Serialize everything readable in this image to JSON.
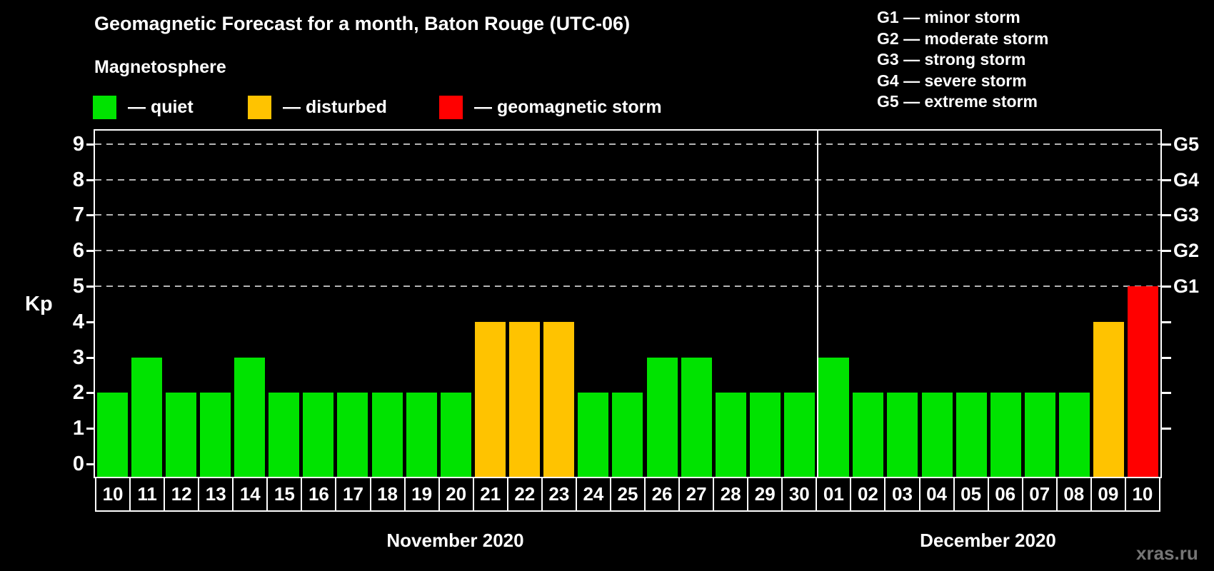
{
  "title": "Geomagnetic Forecast for a month, Baton Rouge (UTC-06)",
  "subtitle": "Magnetosphere",
  "legend": {
    "items": [
      {
        "name": "quiet",
        "label": "— quiet",
        "color": "#00e300"
      },
      {
        "name": "disturbed",
        "label": "— disturbed",
        "color": "#ffc300"
      },
      {
        "name": "storm",
        "label": "— geomagnetic storm",
        "color": "#ff0000"
      }
    ]
  },
  "storm_scale": [
    "G1 — minor storm",
    "G2 — moderate storm",
    "G3 — strong storm",
    "G4 — severe storm",
    "G5 — extreme storm"
  ],
  "watermark": "xras.ru",
  "chart_data": {
    "type": "bar",
    "title": "Geomagnetic Forecast for a month, Baton Rouge (UTC-06)",
    "ylabel": "Kp",
    "ylim": [
      0,
      9.5
    ],
    "yticks": [
      0,
      1,
      2,
      3,
      4,
      5,
      6,
      7,
      8,
      9
    ],
    "gridlines_at": [
      5,
      6,
      7,
      8,
      9
    ],
    "grid": "dashed horizontal at storm levels only",
    "right_axis_labels": {
      "5": "G1",
      "6": "G2",
      "7": "G3",
      "8": "G4",
      "9": "G5"
    },
    "series": [
      {
        "month": "November 2020",
        "days": [
          "10",
          "11",
          "12",
          "13",
          "14",
          "15",
          "16",
          "17",
          "18",
          "19",
          "20",
          "21",
          "22",
          "23",
          "24",
          "25",
          "26",
          "27",
          "28",
          "29",
          "30"
        ],
        "kp": [
          2,
          3,
          2,
          2,
          3,
          2,
          2,
          2,
          2,
          2,
          2,
          4,
          4,
          4,
          2,
          2,
          3,
          3,
          2,
          2,
          2
        ]
      },
      {
        "month": "December 2020",
        "days": [
          "01",
          "02",
          "03",
          "04",
          "05",
          "06",
          "07",
          "08",
          "09",
          "10"
        ],
        "kp": [
          3,
          2,
          2,
          2,
          2,
          2,
          2,
          2,
          4,
          5
        ]
      }
    ],
    "color_rules": {
      "quiet_kp_max": 3,
      "disturbed_kp": 4,
      "storm_kp_min": 5,
      "colors": {
        "quiet": "#00e300",
        "disturbed": "#ffc300",
        "storm": "#ff0000"
      }
    }
  }
}
